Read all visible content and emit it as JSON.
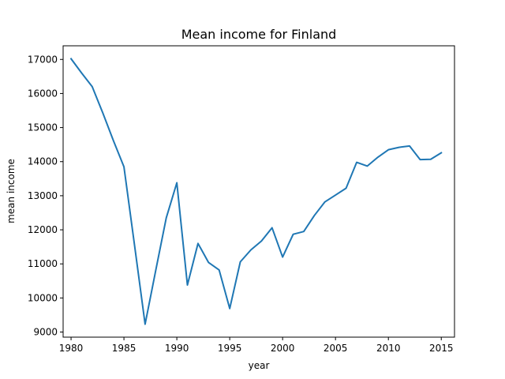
{
  "chart_data": {
    "type": "line",
    "title": "Mean income for Finland",
    "xlabel": "year",
    "ylabel": "mean income",
    "xlim": [
      1979.25,
      2016.25
    ],
    "ylim": [
      8850,
      17400
    ],
    "xticks": [
      1980,
      1985,
      1990,
      1995,
      2000,
      2005,
      2010,
      2015
    ],
    "yticks": [
      9000,
      10000,
      11000,
      12000,
      13000,
      14000,
      15000,
      16000,
      17000
    ],
    "grid": false,
    "series": [
      {
        "name": "mean income",
        "color": "#1f77b4",
        "x": [
          1980,
          1981,
          1982,
          1983,
          1984,
          1985,
          1986,
          1987,
          1988,
          1989,
          1990,
          1991,
          1992,
          1993,
          1994,
          1995,
          1996,
          1997,
          1998,
          1999,
          2000,
          2001,
          2002,
          2003,
          2004,
          2005,
          2006,
          2007,
          2008,
          2009,
          2010,
          2011,
          2012,
          2013,
          2014,
          2015
        ],
        "y": [
          17020,
          16600,
          16200,
          15430,
          14620,
          13850,
          11550,
          9230,
          10800,
          12350,
          13380,
          10380,
          11600,
          11040,
          10820,
          9690,
          11060,
          11410,
          11670,
          12060,
          11200,
          11870,
          11950,
          12420,
          12820,
          13020,
          13220,
          13980,
          13870,
          14130,
          14350,
          14420,
          14460,
          14060,
          14070,
          14260
        ]
      }
    ]
  }
}
